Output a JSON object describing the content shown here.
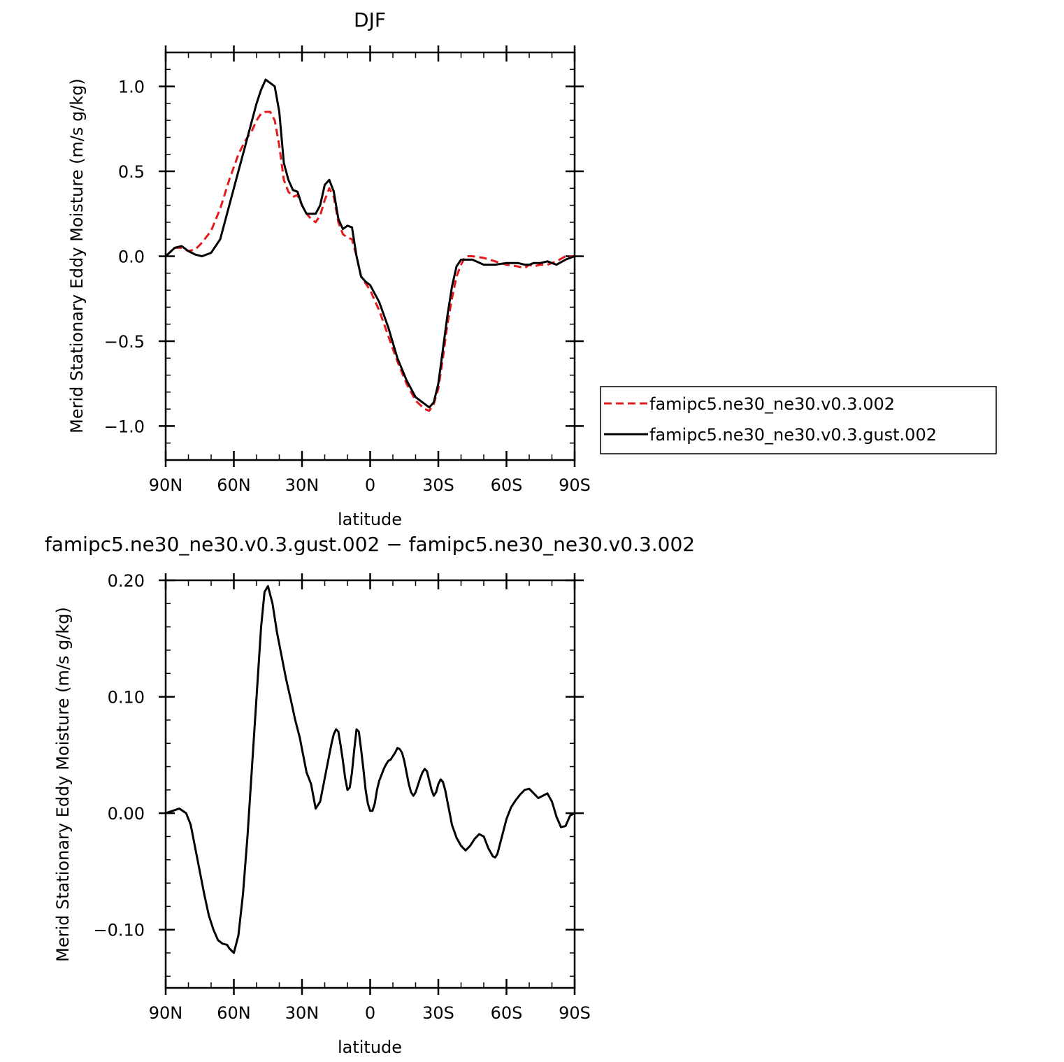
{
  "chart_data": [
    {
      "type": "line",
      "title": "DJF",
      "xlabel": "latitude",
      "ylabel": "Merid Stationary Eddy Moisture (m/s g/kg)",
      "xlim": [
        90,
        -90
      ],
      "ylim": [
        -1.2,
        1.2
      ],
      "x_ticks": [
        {
          "value": 90,
          "label": "90N"
        },
        {
          "value": 60,
          "label": "60N"
        },
        {
          "value": 30,
          "label": "30N"
        },
        {
          "value": 0,
          "label": "0"
        },
        {
          "value": -30,
          "label": "30S"
        },
        {
          "value": -60,
          "label": "60S"
        },
        {
          "value": -90,
          "label": "90S"
        }
      ],
      "y_ticks": [
        {
          "value": 1.0,
          "label": "1.0"
        },
        {
          "value": 0.5,
          "label": "0.5"
        },
        {
          "value": 0.0,
          "label": "0.0"
        },
        {
          "value": -0.5,
          "label": "−0.5"
        },
        {
          "value": -1.0,
          "label": "−1.0"
        }
      ],
      "legend": "right",
      "series": [
        {
          "name": "famipc5.ne30_ne30.v0.3.002",
          "color": "#e41a1c",
          "dash": "dashed",
          "x": [
            90,
            86,
            83,
            80,
            77,
            74,
            70,
            66,
            62,
            58,
            55,
            52,
            50,
            48,
            46,
            44,
            42,
            40,
            38,
            36,
            34,
            32,
            30,
            28,
            26,
            24,
            22,
            20,
            18,
            16,
            14,
            12,
            10,
            8,
            6,
            4,
            2,
            0,
            -4,
            -8,
            -12,
            -16,
            -20,
            -24,
            -26,
            -28,
            -30,
            -32,
            -34,
            -36,
            -38,
            -40,
            -42,
            -45,
            -50,
            -55,
            -60,
            -65,
            -68,
            -70,
            -72,
            -75,
            -78,
            -82,
            -86,
            -90
          ],
          "values": [
            0.0,
            0.05,
            0.05,
            0.03,
            0.04,
            0.08,
            0.15,
            0.28,
            0.45,
            0.6,
            0.68,
            0.74,
            0.8,
            0.84,
            0.85,
            0.85,
            0.8,
            0.65,
            0.45,
            0.38,
            0.35,
            0.36,
            0.3,
            0.25,
            0.22,
            0.2,
            0.24,
            0.33,
            0.4,
            0.35,
            0.2,
            0.13,
            0.11,
            0.1,
            0.0,
            -0.12,
            -0.16,
            -0.2,
            -0.32,
            -0.47,
            -0.62,
            -0.75,
            -0.85,
            -0.9,
            -0.91,
            -0.87,
            -0.78,
            -0.6,
            -0.4,
            -0.25,
            -0.12,
            -0.05,
            0.0,
            0.0,
            -0.01,
            -0.03,
            -0.05,
            -0.06,
            -0.07,
            -0.05,
            -0.06,
            -0.05,
            -0.05,
            -0.03,
            0.0,
            0.0
          ]
        },
        {
          "name": "famipc5.ne30_ne30.v0.3.gust.002",
          "color": "#000000",
          "dash": "solid",
          "x": [
            90,
            86,
            83,
            80,
            77,
            74,
            70,
            66,
            62,
            58,
            55,
            52,
            50,
            48,
            46,
            44,
            42,
            40,
            38,
            36,
            34,
            32,
            30,
            28,
            26,
            24,
            22,
            20,
            18,
            16,
            14,
            12,
            10,
            8,
            6,
            4,
            2,
            0,
            -4,
            -8,
            -12,
            -16,
            -20,
            -24,
            -26,
            -28,
            -30,
            -32,
            -34,
            -36,
            -38,
            -40,
            -42,
            -45,
            -50,
            -55,
            -60,
            -65,
            -68,
            -70,
            -72,
            -75,
            -78,
            -82,
            -86,
            -90
          ],
          "values": [
            0.0,
            0.05,
            0.06,
            0.03,
            0.01,
            0.0,
            0.02,
            0.1,
            0.3,
            0.5,
            0.65,
            0.8,
            0.9,
            0.98,
            1.04,
            1.02,
            1.0,
            0.85,
            0.55,
            0.45,
            0.39,
            0.38,
            0.3,
            0.25,
            0.25,
            0.25,
            0.3,
            0.42,
            0.45,
            0.38,
            0.22,
            0.16,
            0.18,
            0.17,
            0.0,
            -0.12,
            -0.15,
            -0.17,
            -0.27,
            -0.42,
            -0.6,
            -0.73,
            -0.83,
            -0.87,
            -0.89,
            -0.86,
            -0.75,
            -0.55,
            -0.35,
            -0.18,
            -0.06,
            -0.02,
            -0.02,
            -0.02,
            -0.05,
            -0.05,
            -0.04,
            -0.04,
            -0.05,
            -0.05,
            -0.04,
            -0.04,
            -0.03,
            -0.05,
            -0.02,
            0.0
          ]
        }
      ]
    },
    {
      "type": "line",
      "title": "famipc5.ne30_ne30.v0.3.gust.002 − famipc5.ne30_ne30.v0.3.002",
      "xlabel": "latitude",
      "ylabel": "Merid Stationary Eddy Moisture (m/s g/kg)",
      "xlim": [
        90,
        -90
      ],
      "ylim": [
        -0.15,
        0.2
      ],
      "x_ticks": [
        {
          "value": 90,
          "label": "90N"
        },
        {
          "value": 60,
          "label": "60N"
        },
        {
          "value": 30,
          "label": "30N"
        },
        {
          "value": 0,
          "label": "0"
        },
        {
          "value": -30,
          "label": "30S"
        },
        {
          "value": -60,
          "label": "60S"
        },
        {
          "value": -90,
          "label": "90S"
        }
      ],
      "y_ticks": [
        {
          "value": 0.2,
          "label": "0.20"
        },
        {
          "value": 0.1,
          "label": "0.10"
        },
        {
          "value": 0.0,
          "label": "0.00"
        },
        {
          "value": -0.1,
          "label": "−0.10"
        }
      ],
      "series": [
        {
          "color": "#000000",
          "dash": "solid",
          "x": [
            90,
            87,
            84,
            81,
            79,
            77,
            75,
            73,
            71,
            69,
            67,
            65,
            63,
            62,
            60,
            58,
            56,
            54,
            52,
            50,
            48,
            46.5,
            45,
            43,
            41,
            39,
            37,
            35,
            33,
            31,
            30,
            29,
            28,
            27,
            26,
            24,
            22,
            20,
            18,
            17,
            16,
            15,
            14,
            13,
            12,
            11,
            10,
            9,
            8,
            7,
            6,
            5,
            4,
            3,
            2,
            1,
            0,
            -1,
            -2,
            -3,
            -4,
            -5,
            -6,
            -7,
            -8,
            -9,
            -10,
            -11,
            -12,
            -13,
            -14,
            -15,
            -16,
            -17,
            -18,
            -19,
            -20,
            -21,
            -22,
            -23,
            -24,
            -25,
            -26,
            -27,
            -28,
            -29,
            -30,
            -31,
            -32,
            -33,
            -34,
            -35,
            -36,
            -38,
            -40,
            -42,
            -44,
            -46,
            -48,
            -50,
            -52,
            -54,
            -55,
            -56,
            -58,
            -60,
            -62,
            -64,
            -66,
            -68,
            -70,
            -72,
            -74,
            -76,
            -78,
            -80,
            -82,
            -84,
            -86,
            -88,
            -90
          ],
          "values": [
            0.0,
            0.002,
            0.004,
            0.0,
            -0.01,
            -0.03,
            -0.05,
            -0.07,
            -0.088,
            -0.1,
            -0.109,
            -0.112,
            -0.113,
            -0.116,
            -0.12,
            -0.105,
            -0.07,
            -0.02,
            0.04,
            0.1,
            0.16,
            0.19,
            0.195,
            0.18,
            0.155,
            0.135,
            0.115,
            0.098,
            0.08,
            0.065,
            0.055,
            0.045,
            0.035,
            0.03,
            0.025,
            0.004,
            0.01,
            0.03,
            0.05,
            0.06,
            0.068,
            0.072,
            0.07,
            0.058,
            0.045,
            0.03,
            0.02,
            0.022,
            0.035,
            0.055,
            0.072,
            0.07,
            0.055,
            0.038,
            0.02,
            0.008,
            0.002,
            0.002,
            0.008,
            0.02,
            0.028,
            0.033,
            0.038,
            0.042,
            0.045,
            0.046,
            0.049,
            0.052,
            0.056,
            0.055,
            0.052,
            0.045,
            0.035,
            0.025,
            0.018,
            0.015,
            0.018,
            0.024,
            0.03,
            0.035,
            0.038,
            0.036,
            0.028,
            0.02,
            0.015,
            0.018,
            0.025,
            0.029,
            0.027,
            0.02,
            0.01,
            0.0,
            -0.01,
            -0.021,
            -0.028,
            -0.032,
            -0.028,
            -0.022,
            -0.018,
            -0.02,
            -0.03,
            -0.037,
            -0.038,
            -0.035,
            -0.02,
            -0.005,
            0.005,
            0.011,
            0.016,
            0.02,
            0.021,
            0.017,
            0.013,
            0.015,
            0.017,
            0.01,
            -0.003,
            -0.012,
            -0.011,
            -0.002,
            0.0
          ]
        }
      ]
    }
  ]
}
